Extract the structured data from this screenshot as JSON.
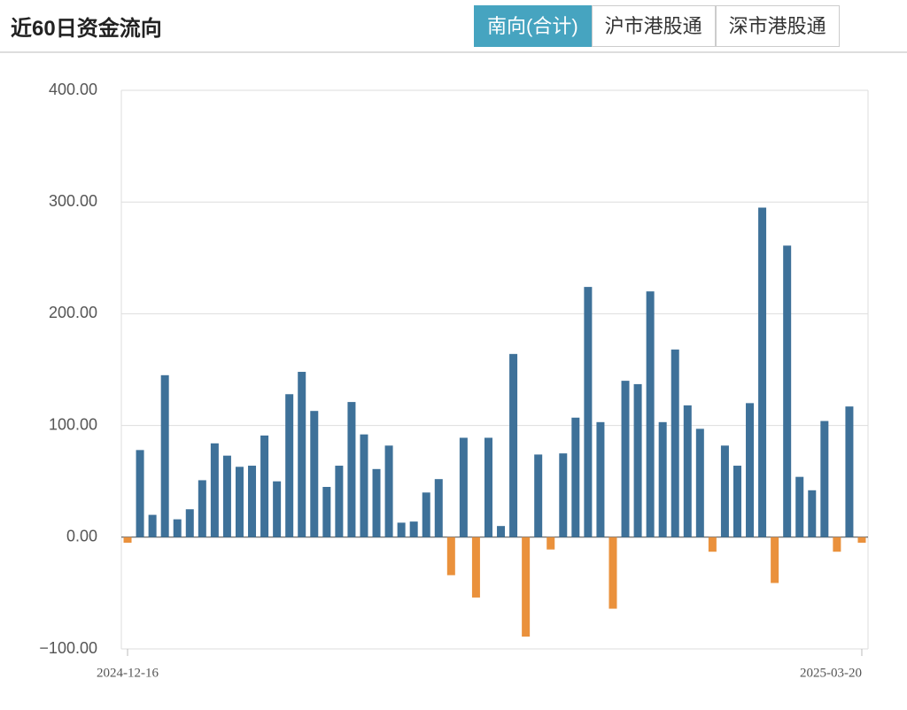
{
  "header": {
    "title": "近60日资金流向",
    "tabs": [
      "南向(合计)",
      "沪市港股通",
      "深市港股通"
    ],
    "active_tab": 0
  },
  "chart_data": {
    "type": "bar",
    "categories": [
      "2024-12-16",
      null,
      null,
      null,
      null,
      null,
      null,
      null,
      null,
      null,
      null,
      null,
      null,
      null,
      null,
      null,
      null,
      null,
      null,
      null,
      null,
      null,
      null,
      null,
      null,
      null,
      null,
      null,
      null,
      null,
      null,
      null,
      null,
      null,
      null,
      null,
      null,
      null,
      null,
      null,
      null,
      null,
      null,
      null,
      null,
      null,
      null,
      null,
      null,
      null,
      null,
      null,
      null,
      null,
      null,
      null,
      null,
      null,
      null,
      "2025-03-20"
    ],
    "values": [
      -5,
      78,
      20,
      145,
      16,
      25,
      51,
      84,
      73,
      63,
      64,
      91,
      50,
      128,
      148,
      113,
      45,
      64,
      121,
      92,
      61,
      82,
      13,
      14,
      40,
      52,
      -34,
      89,
      -54,
      89,
      10,
      164,
      -89,
      74,
      -11,
      75,
      107,
      224,
      103,
      -64,
      140,
      137,
      220,
      103,
      168,
      118,
      97,
      -13,
      82,
      64,
      120,
      295,
      -41,
      261,
      54,
      42,
      104,
      -13,
      117,
      -5
    ],
    "color": "#3e7199",
    "negative_color": "#ea913c",
    "ylim": [
      -100,
      400
    ],
    "yticks": [
      {
        "value": -100,
        "label": "−100.00"
      },
      {
        "value": 0,
        "label": "0.00"
      },
      {
        "value": 100,
        "label": "100.00"
      },
      {
        "value": 200,
        "label": "200.00"
      },
      {
        "value": 300,
        "label": "300.00"
      },
      {
        "value": 400,
        "label": "400.00"
      }
    ],
    "grid": true
  }
}
